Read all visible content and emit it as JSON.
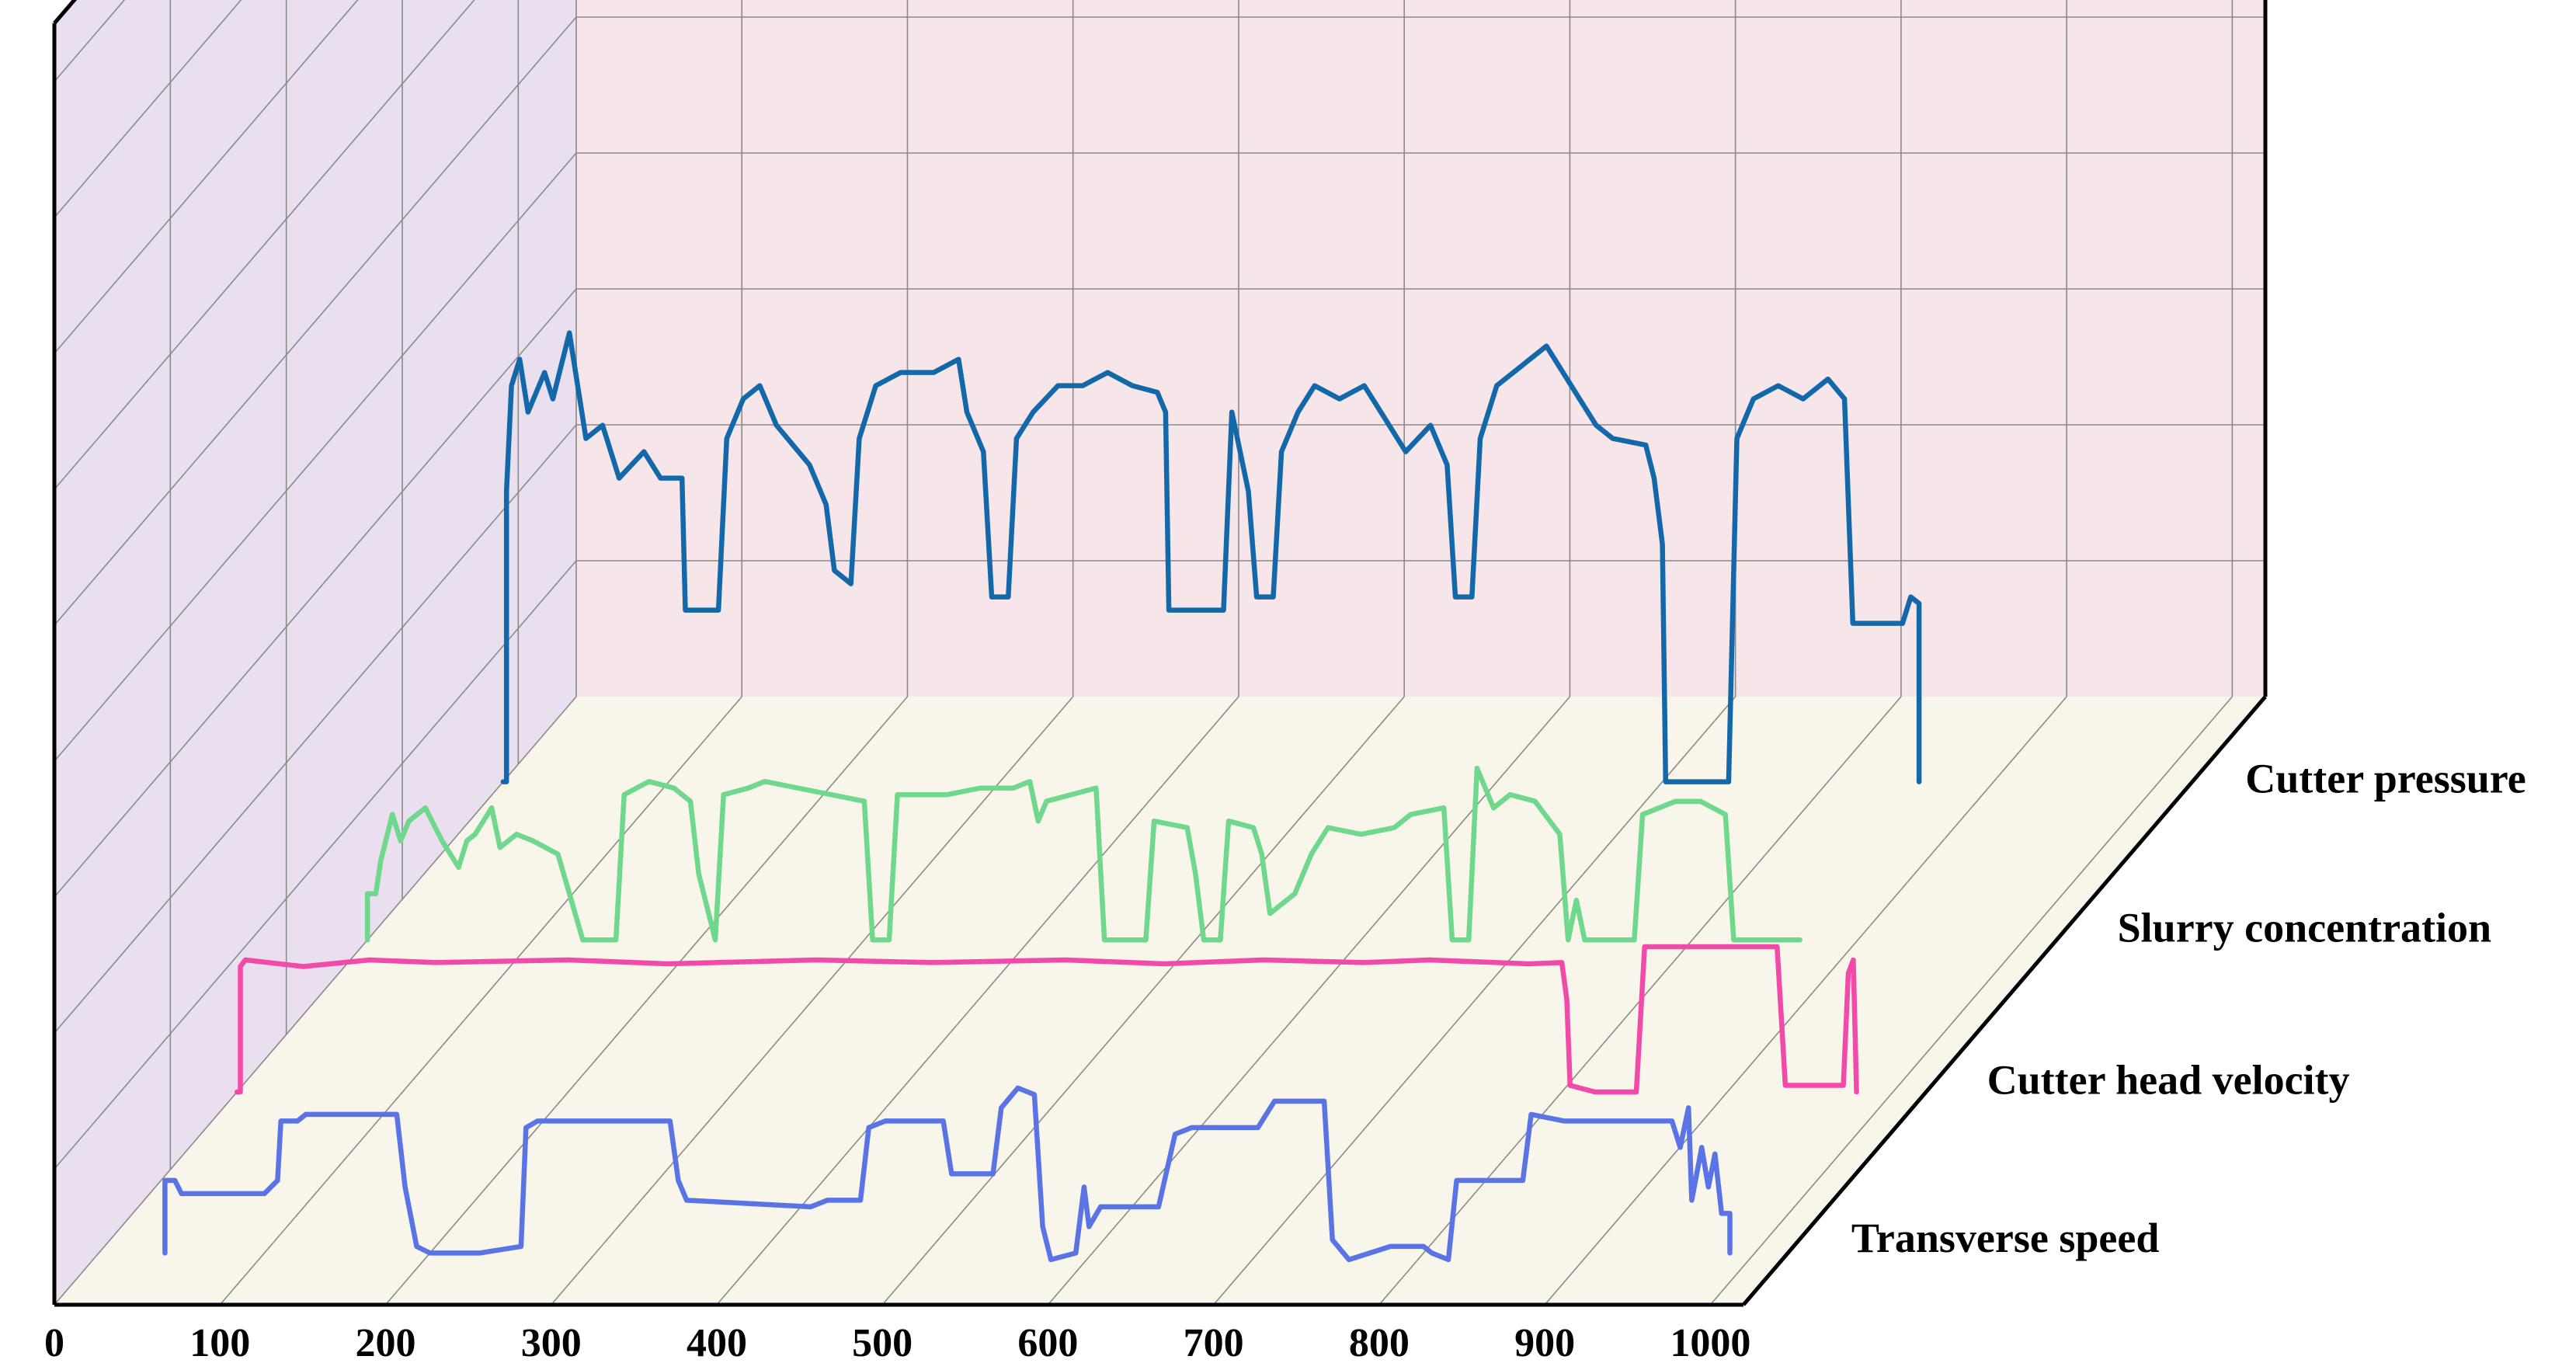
{
  "chart_data": {
    "type": "line",
    "projection": "3d-waterfall",
    "x_ticks": [
      0,
      100,
      200,
      300,
      400,
      500,
      600,
      700,
      800,
      900,
      1000
    ],
    "xlim": [
      0,
      1020
    ],
    "grid": true,
    "colors": {
      "back_wall": "#f7e6e9",
      "side_wall": "#eadfee",
      "floor": "#f8f6ea",
      "grid": "#8a8a8a",
      "frame": "#000000"
    },
    "series": [
      {
        "name": "Transverse speed",
        "color": "#5a74e6",
        "points": [
          [
            40,
            0
          ],
          [
            40,
            0.55
          ],
          [
            46,
            0.55
          ],
          [
            50,
            0.45
          ],
          [
            100,
            0.45
          ],
          [
            108,
            0.55
          ],
          [
            110,
            1.0
          ],
          [
            120,
            1.0
          ],
          [
            125,
            1.05
          ],
          [
            180,
            1.05
          ],
          [
            185,
            0.5
          ],
          [
            192,
            0.05
          ],
          [
            200,
            0.0
          ],
          [
            230,
            0.0
          ],
          [
            255,
            0.05
          ],
          [
            258,
            0.95
          ],
          [
            265,
            1.0
          ],
          [
            345,
            1.0
          ],
          [
            350,
            0.55
          ],
          [
            355,
            0.4
          ],
          [
            430,
            0.35
          ],
          [
            440,
            0.4
          ],
          [
            460,
            0.4
          ],
          [
            465,
            0.95
          ],
          [
            475,
            1.0
          ],
          [
            510,
            1.0
          ],
          [
            515,
            0.6
          ],
          [
            540,
            0.6
          ],
          [
            545,
            1.1
          ],
          [
            555,
            1.25
          ],
          [
            565,
            1.2
          ],
          [
            570,
            0.2
          ],
          [
            575,
            -0.05
          ],
          [
            590,
            0.0
          ],
          [
            595,
            0.5
          ],
          [
            598,
            0.2
          ],
          [
            605,
            0.35
          ],
          [
            640,
            0.35
          ],
          [
            650,
            0.9
          ],
          [
            660,
            0.95
          ],
          [
            700,
            0.95
          ],
          [
            710,
            1.15
          ],
          [
            740,
            1.15
          ],
          [
            745,
            0.1
          ],
          [
            755,
            -0.05
          ],
          [
            780,
            0.05
          ],
          [
            800,
            0.05
          ],
          [
            805,
            0.0
          ],
          [
            815,
            -0.05
          ],
          [
            820,
            0.55
          ],
          [
            860,
            0.55
          ],
          [
            865,
            1.05
          ],
          [
            885,
            1.0
          ],
          [
            950,
            1.0
          ],
          [
            955,
            0.8
          ],
          [
            960,
            1.1
          ],
          [
            962,
            0.4
          ],
          [
            968,
            0.8
          ],
          [
            972,
            0.5
          ],
          [
            976,
            0.75
          ],
          [
            980,
            0.3
          ],
          [
            985,
            0.3
          ],
          [
            985,
            0
          ]
        ]
      },
      {
        "name": "Cutter head velocity",
        "color": "#f24aa8",
        "points": [
          [
            0,
            0
          ],
          [
            2,
            0
          ],
          [
            2,
            0.95
          ],
          [
            5,
            1.0
          ],
          [
            40,
            0.95
          ],
          [
            80,
            1.0
          ],
          [
            120,
            0.98
          ],
          [
            200,
            1.0
          ],
          [
            260,
            0.97
          ],
          [
            350,
            1.0
          ],
          [
            420,
            0.98
          ],
          [
            500,
            1.0
          ],
          [
            560,
            0.97
          ],
          [
            620,
            1.0
          ],
          [
            680,
            0.98
          ],
          [
            720,
            1.0
          ],
          [
            780,
            0.97
          ],
          [
            800,
            0.98
          ],
          [
            803,
            0.7
          ],
          [
            805,
            0.05
          ],
          [
            820,
            0.0
          ],
          [
            845,
            0.0
          ],
          [
            850,
            1.1
          ],
          [
            930,
            1.1
          ],
          [
            935,
            0.05
          ],
          [
            970,
            0.05
          ],
          [
            973,
            0.9
          ],
          [
            976,
            1.0
          ],
          [
            978,
            0.0
          ],
          [
            978,
            0
          ]
        ]
      },
      {
        "name": "Slurry concentration",
        "color": "#6fd88c",
        "points": [
          [
            0,
            0
          ],
          [
            0,
            0.35
          ],
          [
            5,
            0.35
          ],
          [
            8,
            0.6
          ],
          [
            15,
            0.95
          ],
          [
            20,
            0.75
          ],
          [
            25,
            0.9
          ],
          [
            35,
            1.0
          ],
          [
            45,
            0.75
          ],
          [
            55,
            0.55
          ],
          [
            60,
            0.75
          ],
          [
            65,
            0.8
          ],
          [
            75,
            1.0
          ],
          [
            80,
            0.7
          ],
          [
            90,
            0.8
          ],
          [
            100,
            0.75
          ],
          [
            115,
            0.65
          ],
          [
            130,
            0.0
          ],
          [
            150,
            0.0
          ],
          [
            155,
            1.1
          ],
          [
            170,
            1.2
          ],
          [
            185,
            1.15
          ],
          [
            195,
            1.05
          ],
          [
            200,
            0.5
          ],
          [
            210,
            0.0
          ],
          [
            215,
            1.1
          ],
          [
            230,
            1.15
          ],
          [
            240,
            1.2
          ],
          [
            280,
            1.1
          ],
          [
            300,
            1.05
          ],
          [
            305,
            0.0
          ],
          [
            315,
            0.0
          ],
          [
            320,
            1.1
          ],
          [
            350,
            1.1
          ],
          [
            370,
            1.15
          ],
          [
            390,
            1.15
          ],
          [
            400,
            1.2
          ],
          [
            405,
            0.9
          ],
          [
            410,
            1.05
          ],
          [
            440,
            1.15
          ],
          [
            445,
            0.0
          ],
          [
            470,
            0.0
          ],
          [
            475,
            0.9
          ],
          [
            495,
            0.85
          ],
          [
            500,
            0.5
          ],
          [
            505,
            0.0
          ],
          [
            515,
            0.0
          ],
          [
            520,
            0.9
          ],
          [
            535,
            0.85
          ],
          [
            540,
            0.65
          ],
          [
            545,
            0.2
          ],
          [
            560,
            0.35
          ],
          [
            570,
            0.65
          ],
          [
            580,
            0.85
          ],
          [
            600,
            0.8
          ],
          [
            620,
            0.85
          ],
          [
            630,
            0.95
          ],
          [
            650,
            1.0
          ],
          [
            655,
            0.0
          ],
          [
            665,
            0.0
          ],
          [
            670,
            1.3
          ],
          [
            680,
            1.0
          ],
          [
            690,
            1.1
          ],
          [
            705,
            1.05
          ],
          [
            720,
            0.8
          ],
          [
            725,
            0.0
          ],
          [
            730,
            0.3
          ],
          [
            735,
            0.0
          ],
          [
            765,
            0.0
          ],
          [
            770,
            0.95
          ],
          [
            790,
            1.05
          ],
          [
            805,
            1.05
          ],
          [
            820,
            0.95
          ],
          [
            825,
            0.0
          ],
          [
            865,
            0.0
          ],
          [
            865,
            0
          ]
        ]
      },
      {
        "name": "Cutter pressure",
        "color": "#1368aa",
        "points": [
          [
            0,
            0
          ],
          [
            2,
            0
          ],
          [
            2,
            2.2
          ],
          [
            5,
            3.0
          ],
          [
            10,
            3.2
          ],
          [
            15,
            2.8
          ],
          [
            25,
            3.1
          ],
          [
            30,
            2.9
          ],
          [
            40,
            3.4
          ],
          [
            50,
            2.6
          ],
          [
            60,
            2.7
          ],
          [
            70,
            2.3
          ],
          [
            85,
            2.5
          ],
          [
            95,
            2.3
          ],
          [
            108,
            2.3
          ],
          [
            110,
            1.3
          ],
          [
            130,
            1.3
          ],
          [
            135,
            2.6
          ],
          [
            145,
            2.9
          ],
          [
            155,
            3.0
          ],
          [
            165,
            2.7
          ],
          [
            185,
            2.4
          ],
          [
            195,
            2.1
          ],
          [
            200,
            1.6
          ],
          [
            210,
            1.5
          ],
          [
            215,
            2.6
          ],
          [
            225,
            3.0
          ],
          [
            240,
            3.1
          ],
          [
            260,
            3.1
          ],
          [
            275,
            3.2
          ],
          [
            280,
            2.8
          ],
          [
            290,
            2.5
          ],
          [
            295,
            1.4
          ],
          [
            305,
            1.4
          ],
          [
            310,
            2.6
          ],
          [
            320,
            2.8
          ],
          [
            335,
            3.0
          ],
          [
            350,
            3.0
          ],
          [
            365,
            3.1
          ],
          [
            380,
            3.0
          ],
          [
            395,
            2.95
          ],
          [
            400,
            2.8
          ],
          [
            402,
            1.3
          ],
          [
            435,
            1.3
          ],
          [
            440,
            2.8
          ],
          [
            450,
            2.2
          ],
          [
            455,
            1.4
          ],
          [
            465,
            1.4
          ],
          [
            470,
            2.5
          ],
          [
            480,
            2.8
          ],
          [
            490,
            3.0
          ],
          [
            505,
            2.9
          ],
          [
            520,
            3.0
          ],
          [
            530,
            2.8
          ],
          [
            545,
            2.5
          ],
          [
            560,
            2.7
          ],
          [
            570,
            2.4
          ],
          [
            575,
            1.4
          ],
          [
            585,
            1.4
          ],
          [
            590,
            2.6
          ],
          [
            600,
            3.0
          ],
          [
            610,
            3.1
          ],
          [
            630,
            3.3
          ],
          [
            640,
            3.1
          ],
          [
            650,
            2.9
          ],
          [
            660,
            2.7
          ],
          [
            670,
            2.6
          ],
          [
            690,
            2.55
          ],
          [
            695,
            2.3
          ],
          [
            700,
            1.8
          ],
          [
            702,
            0.0
          ],
          [
            740,
            0.0
          ],
          [
            745,
            2.6
          ],
          [
            755,
            2.9
          ],
          [
            770,
            3.0
          ],
          [
            785,
            2.9
          ],
          [
            800,
            3.05
          ],
          [
            810,
            2.9
          ],
          [
            815,
            1.2
          ],
          [
            845,
            1.2
          ],
          [
            850,
            1.4
          ],
          [
            855,
            1.35
          ],
          [
            855,
            0
          ]
        ]
      }
    ]
  },
  "labels": {
    "x_ticks": [
      "0",
      "100",
      "200",
      "300",
      "400",
      "500",
      "600",
      "700",
      "800",
      "900",
      "1000"
    ],
    "series": [
      "Transverse speed",
      "Cutter head velocity",
      "Slurry concentration",
      "Cutter pressure"
    ]
  }
}
